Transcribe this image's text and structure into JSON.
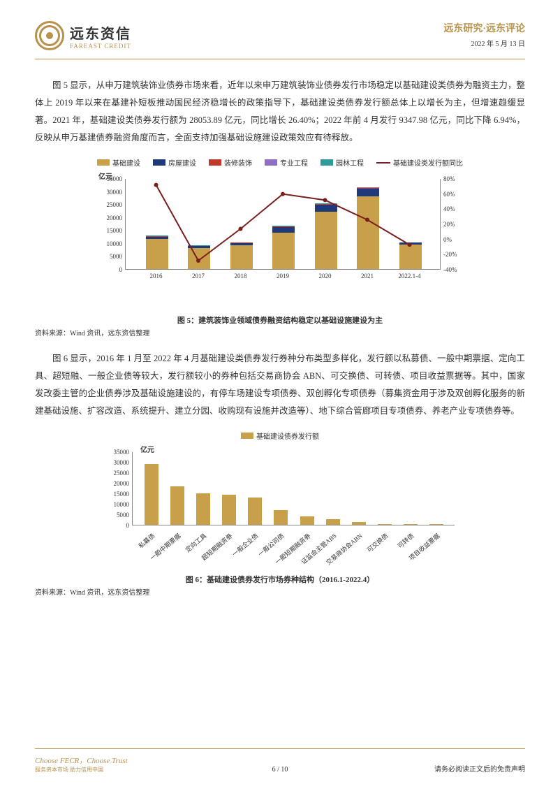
{
  "header": {
    "logo_cn": "远东资信",
    "logo_en": "FAREAST CREDIT",
    "title": "远东研究·远东评论",
    "date": "2022 年 5 月 13 日"
  },
  "para1": "图 5 显示，从申万建筑装饰业债券市场来看，近年以来申万建筑装饰业债券发行市场稳定以基础建设类债券为融资主力，整体上 2019 年以来在基建补短板推动国民经济稳增长的政策指导下，基础建设类债券发行额总体上以增长为主，但增速趋缓显著。2021 年，基础建设类债券发行额为 28053.89 亿元，同比增长 26.40%；2022 年前 4 月发行 9347.98 亿元，同比下降 6.94%，反映从申万基建债券融资角度而言，全面支持加强基础设施建设政策效应有待释放。",
  "chart5": {
    "type": "bar_line",
    "unit": "亿元",
    "legend": [
      {
        "label": "基础建设",
        "color": "#c9a04a",
        "kind": "bar"
      },
      {
        "label": "房屋建设",
        "color": "#1f3a7a",
        "kind": "bar"
      },
      {
        "label": "装修装饰",
        "color": "#c0392b",
        "kind": "bar"
      },
      {
        "label": "专业工程",
        "color": "#8e6fc5",
        "kind": "bar"
      },
      {
        "label": "园林工程",
        "color": "#2e9b9b",
        "kind": "bar"
      },
      {
        "label": "基础建设类发行额同比",
        "color": "#7a1f1f",
        "kind": "line"
      }
    ],
    "categories": [
      "2016",
      "2017",
      "2018",
      "2019",
      "2020",
      "2021",
      "2022.1-4"
    ],
    "y_left": {
      "min": 0,
      "max": 35000,
      "step": 5000
    },
    "y_right": {
      "min": -40,
      "max": 80,
      "step": 20,
      "suffix": "%"
    },
    "series_bar": {
      "基础建设": [
        11500,
        8000,
        9200,
        14000,
        22000,
        28000,
        9350
      ],
      "房屋建设": [
        1000,
        800,
        900,
        2200,
        2800,
        3000,
        800
      ],
      "装修装饰": [
        80,
        70,
        60,
        100,
        120,
        150,
        40
      ],
      "专业工程": [
        150,
        120,
        100,
        180,
        200,
        250,
        60
      ],
      "园林工程": [
        120,
        100,
        80,
        120,
        150,
        180,
        40
      ]
    },
    "series_line": [
      72,
      -28,
      14,
      60,
      52,
      26,
      -7
    ],
    "caption": "图 5：建筑装饰业领域债券融资结构稳定以基础设施建设为主",
    "source": "资料来源：Wind 资讯，远东资信整理",
    "colors": {
      "grid": "#cccccc",
      "axis": "#888888",
      "background": "#ffffff",
      "line_width": 2
    }
  },
  "para2": "图 6 显示，2016 年 1 月至 2022 年 4 月基础建设类债券发行券种分布类型多样化，发行额以私募债、一般中期票据、定向工具、超短融、一般企业债等较大，发行额较小的券种包括交易商协会 ABN、可交换债、可转债、项目收益票据等。其中，国家发改委主管的企业债券涉及基础设施建设的，有停车场建设专项债券、双创孵化专项债券（募集资金用于涉及双创孵化服务的新建基础设施、扩容改造、系统提升、建立分园、收购现有设施并改造等）、地下综合管廊项目专项债券、养老产业专项债券等。",
  "chart6": {
    "type": "bar",
    "unit": "亿元",
    "legend": [
      {
        "label": "基础建设债券发行额",
        "color": "#c9a04a",
        "kind": "bar"
      }
    ],
    "categories": [
      "私募债",
      "一般中期票据",
      "定向工具",
      "超短期融资券",
      "一般企业债",
      "一般公司债",
      "一般短期融资券",
      "证监会主管ABS",
      "交易商协会ABN",
      "可交换债",
      "可转债",
      "项目收益票据"
    ],
    "values": [
      29000,
      18500,
      15000,
      14500,
      13000,
      7000,
      4000,
      2800,
      1200,
      400,
      300,
      200
    ],
    "y_left": {
      "min": 0,
      "max": 35000,
      "step": 5000
    },
    "caption": "图 6：基础建设债券发行市场券种结构（2016.1-2022.4）",
    "source": "资料来源：Wind 资讯，远东资信整理",
    "colors": {
      "bar": "#c9a04a",
      "axis": "#888888",
      "background": "#ffffff"
    }
  },
  "footer": {
    "tagline": "Choose FECR，Choose Trust",
    "sub": "服务资本市场  助力信用中国",
    "page": "6 / 10",
    "disclaimer": "请务必阅读正文后的免责声明"
  }
}
